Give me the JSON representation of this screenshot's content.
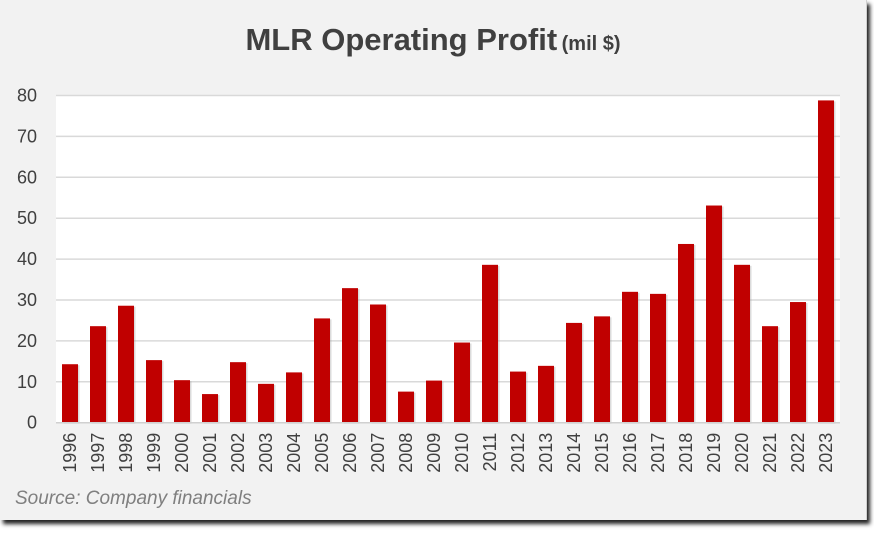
{
  "chart_data": {
    "type": "bar",
    "title": "MLR Operating Profit",
    "title_unit": "(mil $)",
    "source": "Source: Company financials",
    "categories": [
      "1996",
      "1997",
      "1998",
      "1999",
      "2000",
      "2001",
      "2002",
      "2003",
      "2004",
      "2005",
      "2006",
      "2007",
      "2008",
      "2009",
      "2010",
      "2011",
      "2012",
      "2013",
      "2014",
      "2015",
      "2016",
      "2017",
      "2018",
      "2019",
      "2020",
      "2021",
      "2022",
      "2023"
    ],
    "values": [
      14.3,
      23.6,
      28.6,
      15.3,
      10.4,
      7.0,
      14.8,
      9.5,
      12.3,
      25.5,
      32.9,
      28.9,
      7.6,
      10.3,
      19.6,
      38.6,
      12.5,
      13.9,
      24.4,
      26.0,
      32.0,
      31.5,
      43.7,
      53.1,
      38.6,
      23.6,
      29.5,
      78.8
    ],
    "ylim": [
      0,
      80
    ],
    "yticks": [
      0,
      10,
      20,
      30,
      40,
      50,
      60,
      70,
      80
    ],
    "grid": true,
    "legend": "none",
    "bar_color": "#c00000",
    "xlabel": "",
    "ylabel": ""
  }
}
